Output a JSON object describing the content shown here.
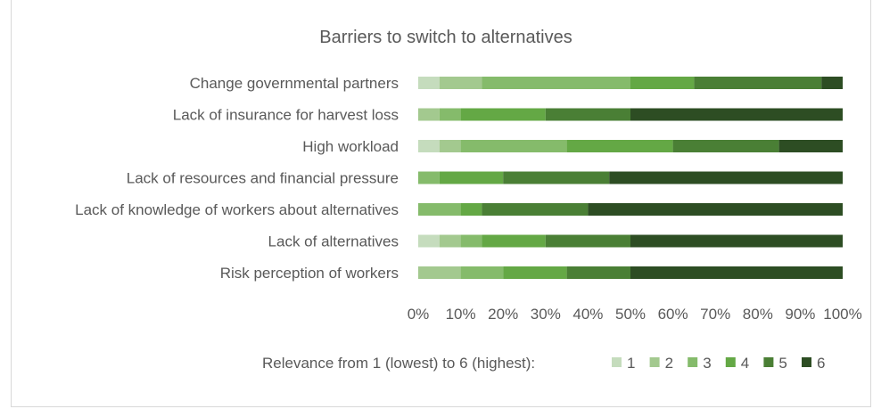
{
  "chart_data": {
    "type": "bar",
    "orientation": "horizontal",
    "stacked": "percent",
    "title": "Barriers to switch to alternatives",
    "categories": [
      "Change governmental partners",
      "Lack of insurance for harvest loss",
      "High workload",
      "Lack of resources and financial pressure",
      "Lack of knowledge of workers about alternatives",
      "Lack of alternatives",
      "Risk perception of workers"
    ],
    "series": [
      {
        "name": "1",
        "color": "#c5dcbd",
        "values": [
          5,
          0,
          5,
          0,
          0,
          5,
          0
        ]
      },
      {
        "name": "2",
        "color": "#a3c98f",
        "values": [
          10,
          5,
          5,
          0,
          0,
          5,
          10
        ]
      },
      {
        "name": "3",
        "color": "#85bb6b",
        "values": [
          35,
          5,
          25,
          5,
          10,
          5,
          10
        ]
      },
      {
        "name": "4",
        "color": "#64a845",
        "values": [
          15,
          20,
          25,
          15,
          5,
          15,
          15
        ]
      },
      {
        "name": "5",
        "color": "#4a7f35",
        "values": [
          30,
          20,
          25,
          25,
          25,
          20,
          15
        ]
      },
      {
        "name": "6",
        "color": "#2d4d23",
        "values": [
          5,
          50,
          15,
          55,
          60,
          50,
          50
        ]
      }
    ],
    "xlim": [
      0,
      100
    ],
    "xticks": [
      "0%",
      "10%",
      "20%",
      "30%",
      "40%",
      "50%",
      "60%",
      "70%",
      "80%",
      "90%",
      "100%"
    ],
    "grid": false,
    "legend_title": "Relevance from 1 (lowest) to 6 (highest):",
    "legend_position": "bottom"
  }
}
